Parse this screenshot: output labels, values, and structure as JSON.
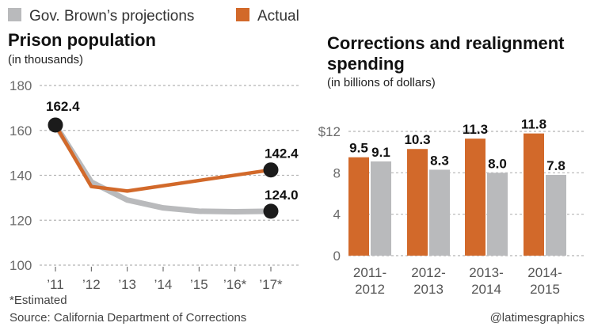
{
  "legend": [
    {
      "label": "Gov. Brown’s projections",
      "color": "#b9babc"
    },
    {
      "label": "Actual",
      "color": "#d2692a"
    }
  ],
  "footnote": "*Estimated",
  "source": "Source: California Department of Corrections",
  "credit": "@latimesgraphics",
  "colors": {
    "projected": "#b9babc",
    "actual": "#d2692a",
    "marker": "#1b1b1b",
    "grid": "#b5b5b5"
  },
  "chart_data": [
    {
      "type": "line",
      "title": "Prison population",
      "subtitle": "(in thousands)",
      "x": [
        "’11",
        "’12",
        "’13",
        "’14",
        "’15",
        "’16*",
        "’17*"
      ],
      "series": [
        {
          "name": "Gov. Brown’s projections",
          "values": [
            162.4,
            137,
            129,
            125.5,
            124,
            123.8,
            124.0
          ]
        },
        {
          "name": "Actual",
          "values": [
            162.4,
            135,
            133,
            null,
            null,
            null,
            142.4
          ]
        }
      ],
      "data_labels": [
        "162.4",
        "142.4",
        "124.0"
      ],
      "yticks": [
        "180",
        "160",
        "140",
        "120",
        "100"
      ],
      "ylim": [
        100,
        180
      ],
      "grid": true
    },
    {
      "type": "bar",
      "title": "Corrections and realignment spending",
      "subtitle": "(in billions of dollars)",
      "categories": [
        [
          "2011-",
          "2012"
        ],
        [
          "2012-",
          "2013"
        ],
        [
          "2013-",
          "2014"
        ],
        [
          "2014-",
          "2015"
        ]
      ],
      "series": [
        {
          "name": "Actual",
          "values": [
            9.5,
            10.3,
            11.3,
            11.8
          ],
          "labels": [
            "9.5",
            "10.3",
            "11.3",
            "11.8"
          ]
        },
        {
          "name": "Gov. Brown’s projections",
          "values": [
            9.1,
            8.3,
            8.0,
            7.8
          ],
          "labels": [
            "9.1",
            "8.3",
            "8.0",
            "7.8"
          ]
        }
      ],
      "yticks": [
        "$12",
        "8",
        "4",
        "0"
      ],
      "ylim": [
        0,
        12
      ],
      "grid": true
    }
  ]
}
